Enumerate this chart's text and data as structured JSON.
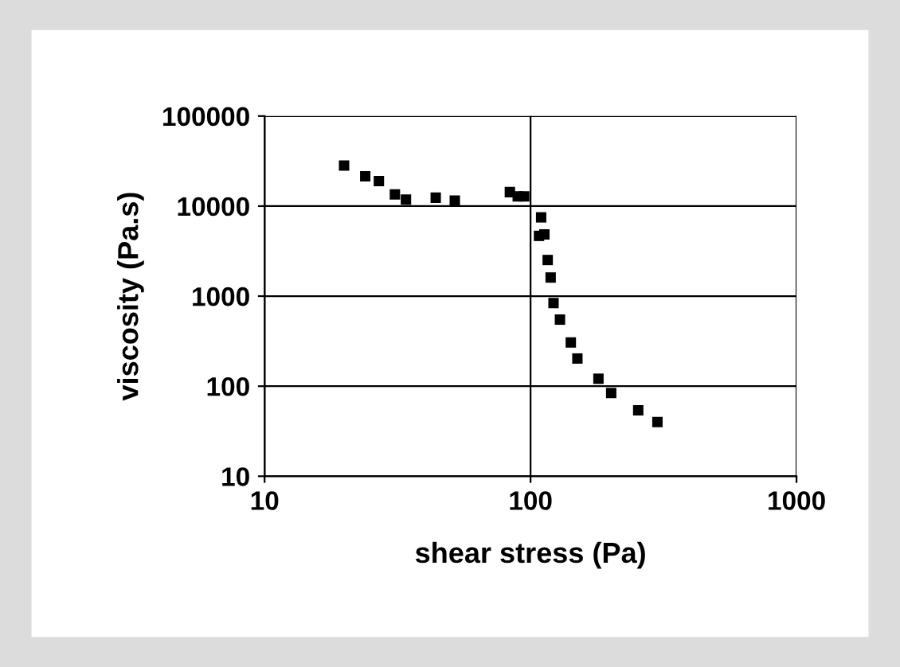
{
  "chart_data": {
    "type": "scatter",
    "xlabel": "shear stress (Pa)",
    "ylabel": "viscosity (Pa.s)",
    "log": "xy",
    "x": [
      19.9,
      23.9,
      26.9,
      30.9,
      34.0,
      44,
      51.9,
      83.6,
      89.5,
      94.6,
      109.6,
      107.6,
      112.7,
      116,
      119,
      122,
      129,
      141.7,
      150,
      180,
      201,
      254,
      300
    ],
    "series": [
      {
        "color": "#000000",
        "values": [
          28200,
          21400,
          19000,
          13500,
          11800,
          12400,
          11500,
          14300,
          12800,
          12800,
          7500,
          4670,
          4850,
          2520,
          1610,
          838,
          549,
          306,
          203,
          121,
          84,
          54,
          40
        ]
      }
    ],
    "xlim": [
      10,
      1000
    ],
    "xticks": [
      10,
      100,
      1000
    ],
    "ylim": [
      10,
      100000
    ],
    "yticks": [
      10,
      100,
      1000,
      10000,
      100000
    ],
    "grid": true,
    "marker": "square"
  }
}
